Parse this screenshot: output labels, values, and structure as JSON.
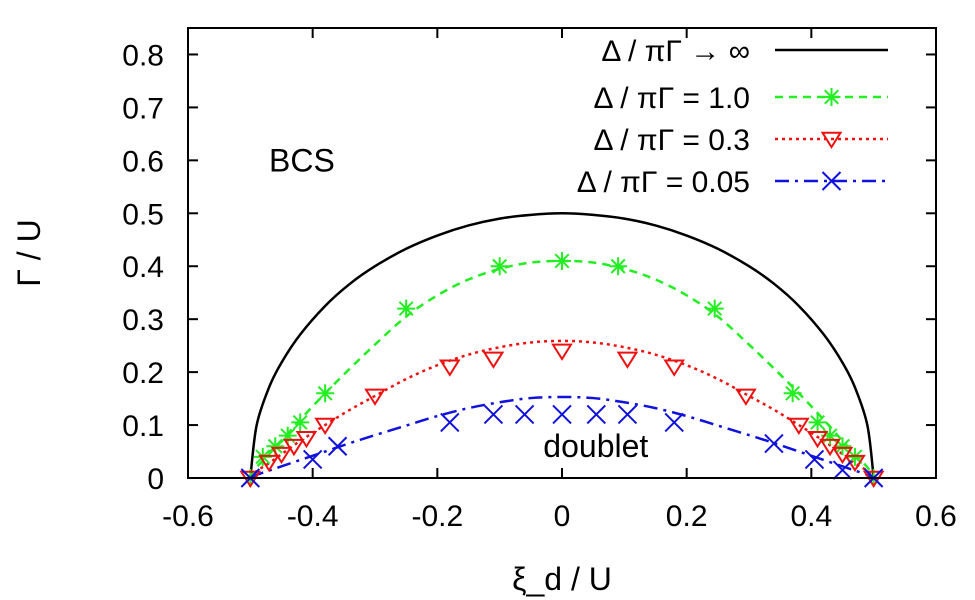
{
  "chart_data": {
    "type": "line",
    "title": "",
    "xlabel": "ξ_d / U",
    "ylabel": "Γ / U",
    "xlim": [
      -0.6,
      0.6
    ],
    "ylim": [
      0,
      0.85
    ],
    "x_ticks": [
      -0.6,
      -0.4,
      -0.2,
      0,
      0.2,
      0.4,
      0.6
    ],
    "x_tick_labels": [
      "-0.6",
      "-0.4",
      "-0.2",
      "0",
      "0.2",
      "0.4",
      "0.6"
    ],
    "y_ticks": [
      0,
      0.1,
      0.2,
      0.3,
      0.4,
      0.5,
      0.6,
      0.7,
      0.8
    ],
    "y_tick_labels": [
      "0",
      "0.1",
      "0.2",
      "0.3",
      "0.4",
      "0.5",
      "0.6",
      "0.7",
      "0.8"
    ],
    "legend_position": "top-right",
    "annotations": [
      {
        "text": "BCS",
        "x": -0.47,
        "y": 0.6
      },
      {
        "text": "doublet",
        "x": -0.03,
        "y": 0.06
      }
    ],
    "series": [
      {
        "name": "Δ / πΓ → ∞",
        "color": "#000000",
        "style": "solid",
        "marker": "none",
        "curve": {
          "x": [
            -0.5,
            -0.49,
            -0.47,
            -0.45,
            -0.42,
            -0.38,
            -0.34,
            -0.3,
            -0.25,
            -0.2,
            -0.15,
            -0.1,
            -0.05,
            0,
            0.05,
            0.1,
            0.15,
            0.2,
            0.25,
            0.3,
            0.34,
            0.38,
            0.42,
            0.45,
            0.47,
            0.49,
            0.5
          ],
          "y": [
            0,
            0.099,
            0.171,
            0.218,
            0.271,
            0.325,
            0.367,
            0.4,
            0.433,
            0.458,
            0.477,
            0.49,
            0.497,
            0.5,
            0.497,
            0.49,
            0.477,
            0.458,
            0.433,
            0.4,
            0.367,
            0.325,
            0.271,
            0.218,
            0.171,
            0.099,
            0
          ]
        },
        "points": {
          "x": [],
          "y": []
        }
      },
      {
        "name": "Δ / πΓ = 1.0",
        "color": "#22ee22",
        "style": "dashed",
        "marker": "asterisk",
        "curve": {
          "x": [
            -0.5,
            -0.49,
            -0.47,
            -0.45,
            -0.42,
            -0.38,
            -0.34,
            -0.3,
            -0.25,
            -0.2,
            -0.15,
            -0.1,
            -0.05,
            0,
            0.05,
            0.1,
            0.15,
            0.2,
            0.25,
            0.3,
            0.34,
            0.38,
            0.42,
            0.45,
            0.47,
            0.49,
            0.5
          ],
          "y": [
            0,
            0.02,
            0.045,
            0.07,
            0.11,
            0.16,
            0.207,
            0.252,
            0.305,
            0.345,
            0.375,
            0.395,
            0.407,
            0.41,
            0.407,
            0.395,
            0.375,
            0.345,
            0.305,
            0.252,
            0.207,
            0.16,
            0.11,
            0.07,
            0.045,
            0.02,
            0
          ]
        },
        "points": {
          "x": [
            -0.5,
            -0.48,
            -0.46,
            -0.44,
            -0.42,
            -0.38,
            -0.25,
            -0.1,
            0,
            0.09,
            0.245,
            0.37,
            0.41,
            0.43,
            0.45,
            0.47,
            0.5
          ],
          "y": [
            0,
            0.04,
            0.06,
            0.08,
            0.105,
            0.16,
            0.32,
            0.4,
            0.41,
            0.4,
            0.32,
            0.16,
            0.105,
            0.08,
            0.06,
            0.04,
            0
          ]
        }
      },
      {
        "name": "Δ / πΓ = 0.3",
        "color": "#ee1111",
        "style": "dotted",
        "marker": "triangle-down",
        "curve": {
          "x": [
            -0.5,
            -0.49,
            -0.47,
            -0.45,
            -0.42,
            -0.38,
            -0.34,
            -0.3,
            -0.25,
            -0.2,
            -0.15,
            -0.1,
            -0.05,
            0,
            0.05,
            0.1,
            0.15,
            0.2,
            0.25,
            0.3,
            0.34,
            0.38,
            0.42,
            0.45,
            0.47,
            0.49,
            0.5
          ],
          "y": [
            0,
            0.013,
            0.028,
            0.045,
            0.07,
            0.1,
            0.129,
            0.155,
            0.187,
            0.213,
            0.233,
            0.247,
            0.256,
            0.259,
            0.256,
            0.247,
            0.233,
            0.213,
            0.187,
            0.155,
            0.129,
            0.1,
            0.07,
            0.045,
            0.028,
            0.013,
            0
          ]
        },
        "points": {
          "x": [
            -0.5,
            -0.47,
            -0.45,
            -0.43,
            -0.41,
            -0.38,
            -0.3,
            -0.18,
            -0.11,
            0,
            0.105,
            0.18,
            0.295,
            0.38,
            0.41,
            0.43,
            0.45,
            0.47,
            0.5
          ],
          "y": [
            0,
            0.03,
            0.045,
            0.06,
            0.075,
            0.1,
            0.155,
            0.21,
            0.225,
            0.24,
            0.225,
            0.21,
            0.155,
            0.1,
            0.075,
            0.06,
            0.045,
            0.03,
            0
          ]
        }
      },
      {
        "name": "Δ / πΓ = 0.05",
        "color": "#1111dd",
        "style": "dashdot",
        "marker": "cross",
        "curve": {
          "x": [
            -0.5,
            -0.49,
            -0.47,
            -0.45,
            -0.42,
            -0.38,
            -0.34,
            -0.3,
            -0.25,
            -0.2,
            -0.15,
            -0.1,
            -0.05,
            0,
            0.05,
            0.1,
            0.15,
            0.2,
            0.25,
            0.3,
            0.34,
            0.38,
            0.42,
            0.45,
            0.47,
            0.49,
            0.5
          ],
          "y": [
            0,
            0.006,
            0.014,
            0.022,
            0.034,
            0.05,
            0.066,
            0.081,
            0.099,
            0.117,
            0.132,
            0.143,
            0.151,
            0.153,
            0.151,
            0.143,
            0.132,
            0.117,
            0.099,
            0.081,
            0.066,
            0.05,
            0.034,
            0.022,
            0.014,
            0.006,
            0
          ]
        },
        "points": {
          "x": [
            -0.5,
            -0.4,
            -0.36,
            -0.18,
            -0.11,
            -0.06,
            0,
            0.055,
            0.105,
            0.18,
            0.34,
            0.405,
            0.45,
            0.5
          ],
          "y": [
            0,
            0.035,
            0.06,
            0.105,
            0.12,
            0.12,
            0.12,
            0.12,
            0.12,
            0.105,
            0.065,
            0.035,
            0.015,
            0
          ]
        }
      }
    ]
  }
}
